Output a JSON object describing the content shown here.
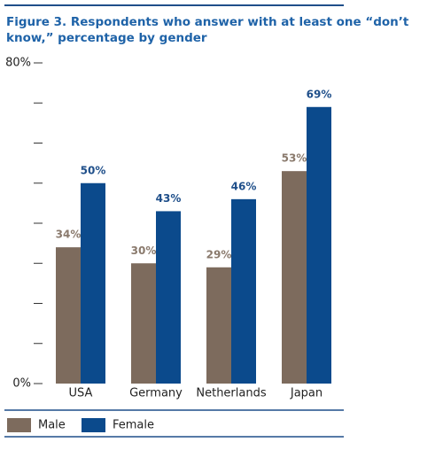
{
  "chart_data": {
    "type": "bar",
    "title": "Figure 3. Respondents who answer with at least one “don’t know,” percentage by gender",
    "categories": [
      "USA",
      "Germany",
      "Netherlands",
      "Japan"
    ],
    "series": [
      {
        "name": "Male",
        "color": "#7d6b5d",
        "values": [
          34,
          30,
          29,
          53
        ],
        "value_labels": [
          "34%",
          "30%",
          "29%",
          "53%"
        ]
      },
      {
        "name": "Female",
        "color": "#0b4a8c",
        "values": [
          50,
          43,
          46,
          69
        ],
        "value_labels": [
          "50%",
          "43%",
          "46%",
          "69%"
        ]
      }
    ],
    "ylim": [
      0,
      80
    ],
    "yticks": [
      {
        "value": 0,
        "label": "0%"
      },
      {
        "value": 80,
        "label": "80%"
      }
    ],
    "yticks_minor": [
      10,
      20,
      30,
      40,
      50,
      60,
      70
    ],
    "grid": false,
    "legend": "bottom"
  }
}
